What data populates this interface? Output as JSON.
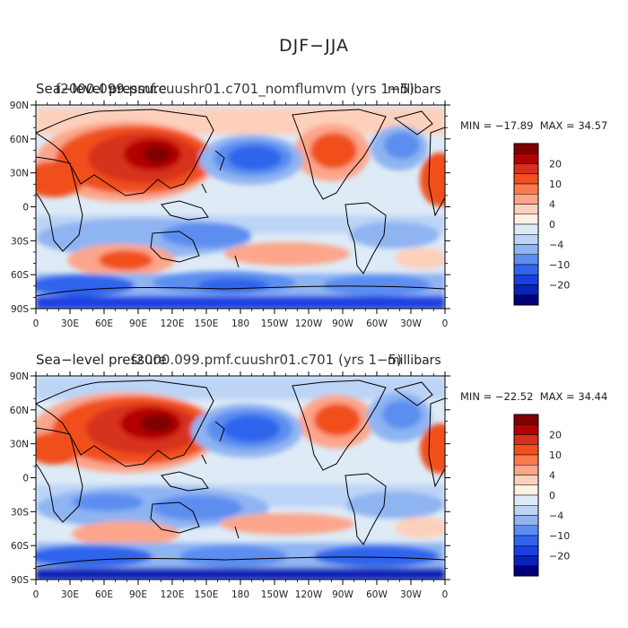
{
  "figure_title": "DJF−JJA",
  "panels": [
    {
      "title": "Sea−level pressure",
      "run_label": "f2000.099.pmf.cuushr01.c701_nomflumvm",
      "years": "(yrs 1−5)",
      "units": "millibars",
      "min_label": "MIN = −17.89",
      "max_label": "MAX = 34.57"
    },
    {
      "title": "Sea−level pressure",
      "run_label": "f2000.099.pmf.cuushr01.c701",
      "years": "(yrs 1−5)",
      "units": "millibars",
      "min_label": "MIN = −22.52",
      "max_label": "MAX = 34.44"
    }
  ],
  "lon_ticks": [
    "0",
    "30E",
    "60E",
    "90E",
    "120E",
    "150E",
    "180",
    "150W",
    "120W",
    "90W",
    "60W",
    "30W",
    "0"
  ],
  "lat_ticks": [
    "90N",
    "60N",
    "30N",
    "0",
    "30S",
    "60S",
    "90S"
  ],
  "colorbar": {
    "labels": [
      "20",
      "10",
      "4",
      "0",
      "−4",
      "−10",
      "−20"
    ],
    "colors": [
      "#7f0000",
      "#b30000",
      "#d7301f",
      "#f0501e",
      "#fc7a4e",
      "#fca58a",
      "#fdd0bc",
      "#fff0e6",
      "#deebf7",
      "#bcd4f5",
      "#8fb4f2",
      "#5b8ef0",
      "#2f65ec",
      "#1a3fe0",
      "#0b22b8",
      "#00007a"
    ]
  },
  "chart_data": {
    "type": "heatmap",
    "field": "Sea-level pressure difference DJF−JJA",
    "units": "millibars",
    "contour_levels": [
      -25,
      -20,
      -15,
      -10,
      -6,
      -4,
      -2,
      0,
      2,
      4,
      6,
      10,
      15,
      20,
      25
    ],
    "panels": [
      {
        "min": -17.89,
        "max": 34.57
      },
      {
        "min": -22.52,
        "max": 34.44
      }
    ]
  }
}
